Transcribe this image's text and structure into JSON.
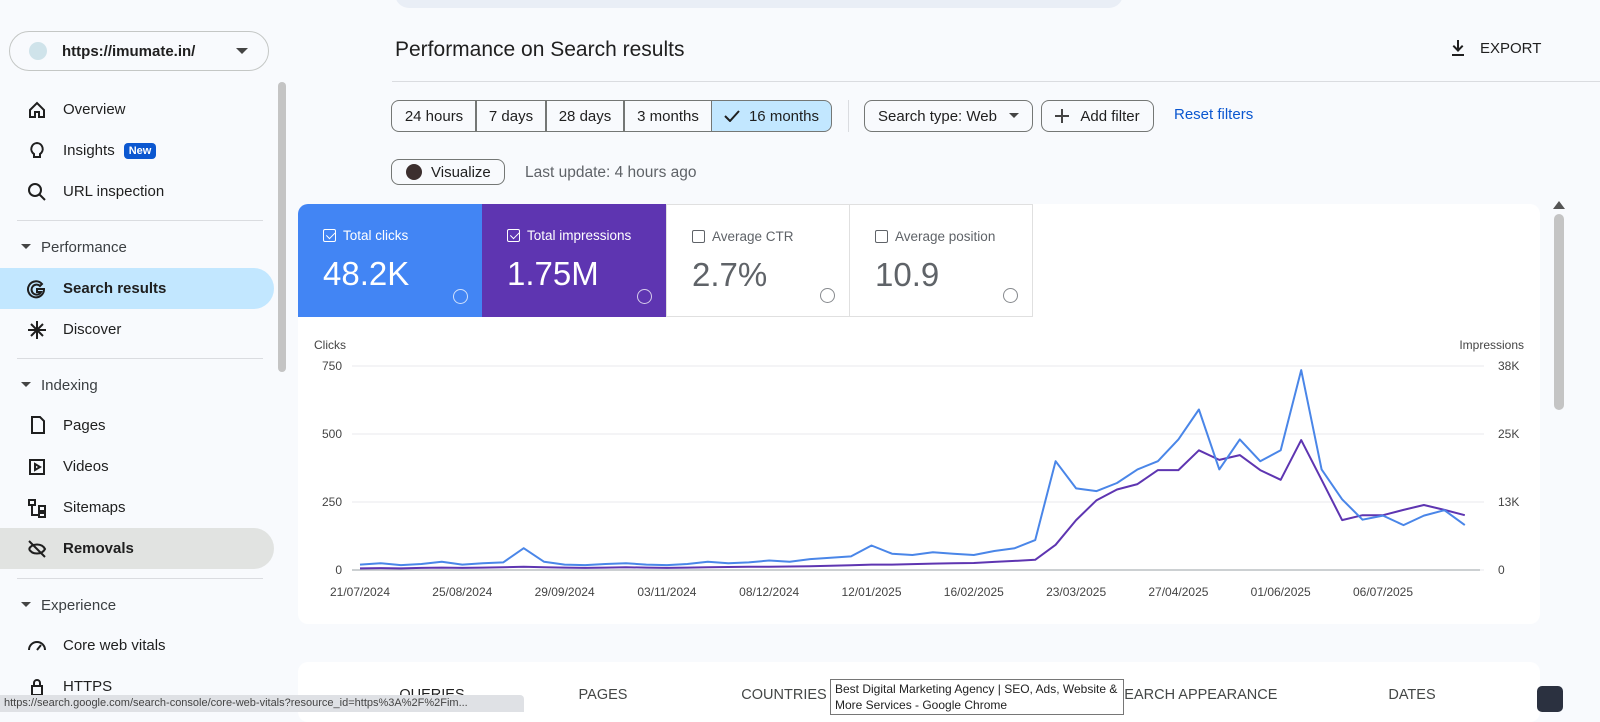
{
  "site": "https://imumate.in/",
  "nav": [
    {
      "label": "Overview"
    },
    {
      "label": "Insights",
      "badge": "New"
    },
    {
      "label": "URL inspection"
    },
    {
      "section": "Performance"
    },
    {
      "label": "Search results"
    },
    {
      "label": "Discover"
    },
    {
      "section": "Indexing"
    },
    {
      "label": "Pages"
    },
    {
      "label": "Videos"
    },
    {
      "label": "Sitemaps"
    },
    {
      "label": "Removals"
    },
    {
      "section": "Experience"
    },
    {
      "label": "Core web vitals"
    },
    {
      "label": "HTTPS"
    }
  ],
  "header": {
    "title": "Performance on Search results",
    "export": "EXPORT"
  },
  "date_ranges": [
    "24 hours",
    "7 days",
    "28 days",
    "3 months",
    "16 months"
  ],
  "search_type": "Search type: Web",
  "add_filter": "Add filter",
  "reset_filters": "Reset filters",
  "visualize": "Visualize",
  "last_update": "Last update: 4 hours ago",
  "metrics": [
    {
      "label": "Total clicks",
      "value": "48.2K"
    },
    {
      "label": "Total impressions",
      "value": "1.75M"
    },
    {
      "label": "Average CTR",
      "value": "2.7%"
    },
    {
      "label": "Average position",
      "value": "10.9"
    }
  ],
  "chart_data": {
    "type": "line",
    "y_label": "Clicks",
    "y2_label": "Impressions",
    "categories": [
      "21/07/2024",
      null,
      null,
      null,
      null,
      "25/08/2024",
      null,
      null,
      null,
      null,
      "29/09/2024",
      null,
      null,
      null,
      null,
      "03/11/2024",
      null,
      null,
      null,
      null,
      "08/12/2024",
      null,
      null,
      null,
      null,
      "12/01/2025",
      null,
      null,
      null,
      null,
      "16/02/2025",
      null,
      null,
      null,
      null,
      "23/03/2025",
      null,
      null,
      null,
      null,
      "27/04/2025",
      null,
      null,
      null,
      null,
      "01/06/2025",
      null,
      null,
      null,
      null,
      "06/07/2025",
      null,
      null,
      null,
      null
    ],
    "series": [
      {
        "name": "Clicks",
        "color": "#4a86e8",
        "values": [
          20,
          25,
          18,
          22,
          30,
          20,
          25,
          28,
          80,
          30,
          20,
          18,
          22,
          25,
          20,
          18,
          22,
          30,
          25,
          28,
          35,
          30,
          40,
          45,
          50,
          90,
          60,
          55,
          65,
          60,
          55,
          70,
          80,
          110,
          400,
          300,
          290,
          320,
          370,
          400,
          480,
          590,
          370,
          480,
          400,
          440,
          735,
          370,
          260,
          185,
          200,
          165,
          200,
          220,
          165
        ]
      },
      {
        "name": "Impressions",
        "color": "#5e35b1",
        "axis": "y2",
        "values": [
          300,
          350,
          300,
          400,
          450,
          400,
          450,
          500,
          600,
          500,
          450,
          400,
          450,
          500,
          450,
          400,
          450,
          500,
          550,
          600,
          600,
          650,
          700,
          800,
          900,
          1000,
          1000,
          1100,
          1200,
          1250,
          1300,
          1500,
          1700,
          1900,
          4700,
          9300,
          13000,
          15000,
          16000,
          18600,
          18600,
          22300,
          20500,
          21400,
          18600,
          16800,
          24200,
          16800,
          9300,
          10200,
          10200,
          11200,
          12100,
          11200,
          10200
        ]
      }
    ],
    "ylim": [
      0,
      750
    ],
    "yticks": [
      0,
      250,
      500,
      750
    ],
    "y2lim": [
      0,
      38000
    ],
    "y2ticks": [
      0,
      {
        "value": 12667,
        "label": "13K"
      },
      {
        "value": 25333,
        "label": "25K"
      },
      {
        "value": 38000,
        "label": "38K"
      }
    ],
    "grid": true
  },
  "tabs": [
    "QUERIES",
    "PAGES",
    "COUNTRIES",
    "SEARCH APPEARANCE",
    "DATES"
  ],
  "tooltip": "Best Digital Marketing Agency | SEO, Ads, Website & More Services - Google Chrome",
  "status_url": "https://search.google.com/search-console/core-web-vitals?resource_id=https%3A%2F%2Fim..."
}
